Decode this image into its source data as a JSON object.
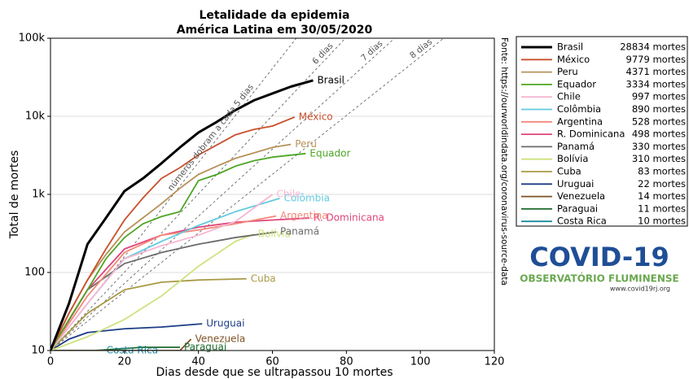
{
  "chart_data": {
    "type": "line",
    "title": "Letalidade da epidemia",
    "subtitle": "América Latina em 30/05/2020",
    "x_label": "Dias desde que se ultrapassou 10 mortes",
    "y_label": "Total de mortes",
    "xlim": [
      0,
      120
    ],
    "ylim": [
      10,
      100000
    ],
    "y_scale": "log",
    "grid": true,
    "legend": "outside right",
    "xticks": [
      0,
      20,
      40,
      60,
      80,
      100,
      120
    ],
    "yticks": [
      10,
      100,
      {
        "value": 1000,
        "label": "1k"
      },
      {
        "value": 10000,
        "label": "10k"
      },
      {
        "value": 100000,
        "label": "100k"
      }
    ],
    "source": "Fonte: https://ourworldindata.org/coronavirus-source-data",
    "doubling_lines": [
      {
        "days": 5,
        "label": "números dobram a cada 5 dias"
      },
      {
        "days": 6,
        "label": "6 dias"
      },
      {
        "days": 7,
        "label": "7 dias"
      },
      {
        "days": 8,
        "label": "8 dias"
      }
    ],
    "series": [
      {
        "name": "Brasil",
        "color": "#000000",
        "width": 3,
        "legend_label": "28834 mortes",
        "x": [
          0,
          5,
          10,
          15,
          20,
          25,
          30,
          35,
          40,
          45,
          50,
          55,
          60,
          65,
          71
        ],
        "values": [
          10,
          40,
          230,
          500,
          1100,
          1600,
          2500,
          4000,
          6200,
          8500,
          12000,
          16000,
          19600,
          24000,
          28834
        ]
      },
      {
        "name": "México",
        "color": "#c8502a",
        "legend_label": "9779 mortes",
        "x": [
          0,
          5,
          10,
          15,
          20,
          25,
          30,
          35,
          40,
          45,
          50,
          55,
          60,
          66
        ],
        "values": [
          10,
          30,
          80,
          200,
          470,
          900,
          1600,
          2200,
          3200,
          4300,
          5800,
          6800,
          7500,
          9779
        ]
      },
      {
        "name": "Peru",
        "color": "#b8925a",
        "legend_label": "4371 mortes",
        "x": [
          0,
          5,
          10,
          15,
          20,
          25,
          30,
          35,
          40,
          45,
          50,
          55,
          60,
          65
        ],
        "values": [
          10,
          30,
          80,
          170,
          330,
          500,
          760,
          1200,
          1800,
          2300,
          2900,
          3400,
          4000,
          4371
        ]
      },
      {
        "name": "Equador",
        "color": "#4ea524",
        "legend_label": "3334 mortes",
        "x": [
          0,
          5,
          10,
          15,
          20,
          25,
          30,
          35,
          40,
          45,
          50,
          55,
          60,
          69
        ],
        "values": [
          10,
          25,
          60,
          150,
          280,
          420,
          520,
          600,
          1500,
          1800,
          2300,
          2700,
          3000,
          3334
        ]
      },
      {
        "name": "Chile",
        "color": "#f7b6d2",
        "legend_label": "997 mortes",
        "x": [
          0,
          10,
          20,
          30,
          40,
          50,
          60
        ],
        "values": [
          10,
          40,
          150,
          220,
          300,
          450,
          997
        ]
      },
      {
        "name": "Colômbia",
        "color": "#62cbe0",
        "legend_label": "890 mortes",
        "x": [
          0,
          10,
          20,
          30,
          40,
          50,
          62
        ],
        "values": [
          10,
          40,
          150,
          250,
          400,
          600,
          890
        ]
      },
      {
        "name": "Argentina",
        "color": "#f28878",
        "legend_label": "528 mortes",
        "x": [
          0,
          10,
          20,
          30,
          40,
          50,
          61
        ],
        "values": [
          10,
          50,
          180,
          300,
          350,
          420,
          528
        ]
      },
      {
        "name": "R. Dominicana",
        "color": "#e0457a",
        "legend_label": "498 mortes",
        "x": [
          0,
          10,
          20,
          30,
          40,
          50,
          60,
          70
        ],
        "values": [
          10,
          60,
          200,
          300,
          380,
          440,
          470,
          498
        ]
      },
      {
        "name": "Panamá",
        "color": "#6b6b6b",
        "legend_label": "330 mortes",
        "x": [
          0,
          10,
          20,
          30,
          40,
          50,
          61
        ],
        "values": [
          10,
          60,
          130,
          180,
          230,
          280,
          330
        ]
      },
      {
        "name": "Bolívia",
        "color": "#cde37e",
        "legend_label": "310 mortes",
        "x": [
          0,
          10,
          20,
          30,
          40,
          50,
          55
        ],
        "values": [
          10,
          15,
          25,
          50,
          120,
          250,
          310
        ]
      },
      {
        "name": "Cuba",
        "color": "#a89a45",
        "legend_label": "83 mortes",
        "x": [
          0,
          10,
          20,
          30,
          40,
          53
        ],
        "values": [
          10,
          30,
          60,
          75,
          80,
          83
        ]
      },
      {
        "name": "Uruguai",
        "color": "#1c3c85",
        "legend_label": "22 mortes",
        "x": [
          0,
          5,
          10,
          20,
          30,
          41
        ],
        "values": [
          10,
          14,
          17,
          19,
          20,
          22
        ]
      },
      {
        "name": "Venezuela",
        "color": "#7d5224",
        "legend_label": "14 mortes",
        "x": [
          0,
          35,
          38
        ],
        "values": [
          10,
          10,
          14
        ]
      },
      {
        "name": "Paraguai",
        "color": "#1e6b2e",
        "legend_label": "11 mortes",
        "x": [
          12,
          25,
          35
        ],
        "values": [
          10,
          11,
          11
        ]
      },
      {
        "name": "Costa Rica",
        "color": "#1b8a9c",
        "legend_label": "10 mortes",
        "x": [
          0,
          14
        ],
        "values": [
          10,
          10
        ]
      }
    ]
  },
  "logo": {
    "title": "COVID-19",
    "subtitle": "OBSERVATÓRIO FLUMINENSE",
    "url": "www.covid19rj.org"
  }
}
